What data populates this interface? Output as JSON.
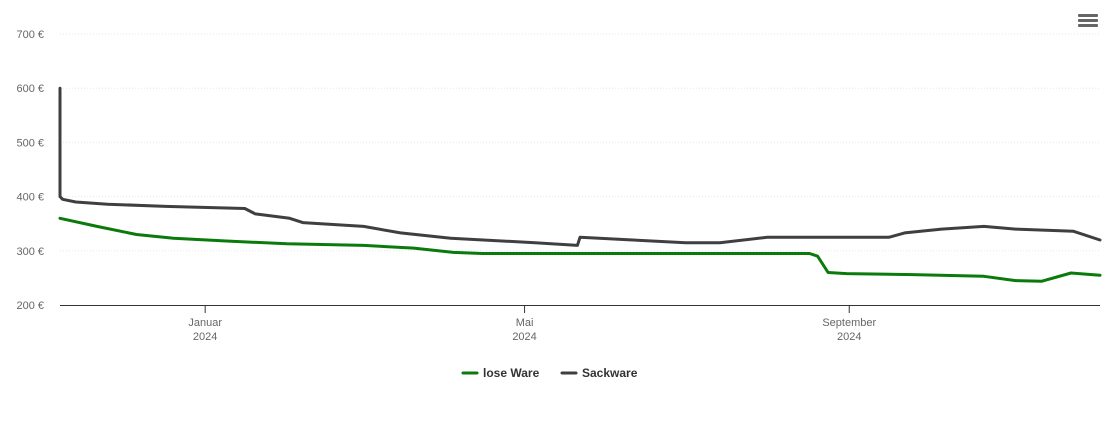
{
  "chart_data": {
    "type": "line",
    "title": "",
    "xlabel": "",
    "ylabel": "",
    "ylim": [
      200,
      700
    ],
    "y_ticks": [
      "200 €",
      "300 €",
      "400 €",
      "500 €",
      "600 €",
      "700 €"
    ],
    "x_ticks": [
      {
        "date": "2024-01-01",
        "month": "Januar",
        "year": "2024"
      },
      {
        "date": "2024-05-01",
        "month": "Mai",
        "year": "2024"
      },
      {
        "date": "2024-09-01",
        "month": "September",
        "year": "2024"
      }
    ],
    "xlim": [
      "2023-11-07",
      "2024-12-05"
    ],
    "grid": true,
    "legend_position": "bottom-center",
    "series": [
      {
        "name": "lose Ware",
        "color": "#0a7a0a",
        "points": [
          [
            "2023-11-07",
            360
          ],
          [
            "2023-11-21",
            345
          ],
          [
            "2023-12-06",
            330
          ],
          [
            "2023-12-20",
            323
          ],
          [
            "2024-01-09",
            318
          ],
          [
            "2024-02-01",
            313
          ],
          [
            "2024-03-01",
            310
          ],
          [
            "2024-03-20",
            305
          ],
          [
            "2024-04-04",
            297
          ],
          [
            "2024-04-15",
            295
          ],
          [
            "2024-05-16",
            295
          ],
          [
            "2024-06-18",
            295
          ],
          [
            "2024-07-20",
            295
          ],
          [
            "2024-08-17",
            295
          ],
          [
            "2024-08-20",
            290
          ],
          [
            "2024-08-24",
            260
          ],
          [
            "2024-08-31",
            258
          ],
          [
            "2024-09-25",
            256
          ],
          [
            "2024-10-22",
            253
          ],
          [
            "2024-11-03",
            245
          ],
          [
            "2024-11-13",
            244
          ],
          [
            "2024-11-24",
            259
          ],
          [
            "2024-12-05",
            255
          ]
        ]
      },
      {
        "name": "Sackware",
        "color": "#3f3f3f",
        "points": [
          [
            "2023-11-07",
            600
          ],
          [
            "2023-11-07",
            400
          ],
          [
            "2023-11-08",
            395
          ],
          [
            "2023-11-13",
            390
          ],
          [
            "2023-11-25",
            386
          ],
          [
            "2023-12-17",
            382
          ],
          [
            "2024-01-16",
            378
          ],
          [
            "2024-01-20",
            368
          ],
          [
            "2024-02-02",
            360
          ],
          [
            "2024-02-07",
            352
          ],
          [
            "2024-03-01",
            345
          ],
          [
            "2024-03-15",
            333
          ],
          [
            "2024-04-03",
            323
          ],
          [
            "2024-05-05",
            315
          ],
          [
            "2024-05-21",
            310
          ],
          [
            "2024-05-22",
            325
          ],
          [
            "2024-06-11",
            320
          ],
          [
            "2024-07-01",
            315
          ],
          [
            "2024-07-14",
            315
          ],
          [
            "2024-08-01",
            325
          ],
          [
            "2024-08-28",
            325
          ],
          [
            "2024-09-16",
            325
          ],
          [
            "2024-09-22",
            333
          ],
          [
            "2024-10-06",
            340
          ],
          [
            "2024-10-22",
            345
          ],
          [
            "2024-11-03",
            340
          ],
          [
            "2024-11-25",
            336
          ],
          [
            "2024-12-05",
            320
          ]
        ]
      }
    ]
  }
}
